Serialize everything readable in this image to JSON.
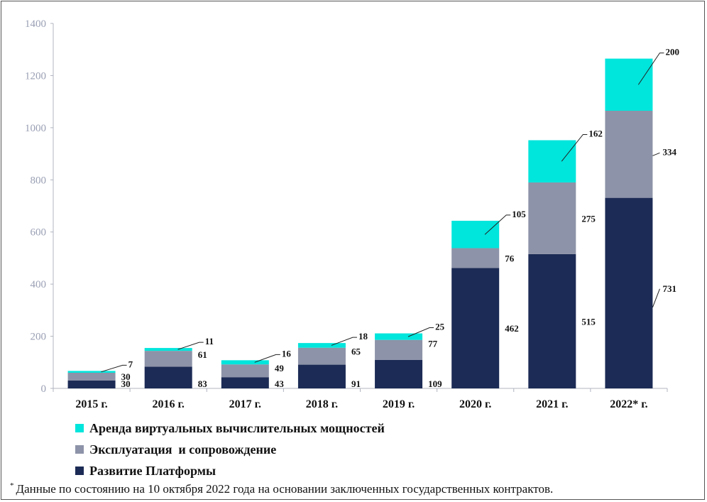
{
  "chart_data": {
    "type": "bar",
    "stacked": true,
    "categories": [
      "2015 г.",
      "2016 г.",
      "2017 г.",
      "2018 г.",
      "2019 г.",
      "2020 г.",
      "2021 г.",
      "2022* г."
    ],
    "series": [
      {
        "name": "Развитие Платформы",
        "color": "#1c2b55",
        "values": [
          30,
          83,
          43,
          91,
          109,
          462,
          515,
          731
        ]
      },
      {
        "name": "Эксплуатация  и сопровождение",
        "color": "#8d93a8",
        "values": [
          30,
          61,
          49,
          65,
          77,
          76,
          275,
          334
        ]
      },
      {
        "name": "Аренда виртуальных вычислительных мощностей",
        "color": "#00e5dc",
        "values": [
          7,
          11,
          16,
          18,
          25,
          105,
          162,
          200
        ]
      }
    ],
    "ylim": [
      0,
      1400
    ],
    "yticks": [
      0,
      200,
      400,
      600,
      800,
      1000,
      1200,
      1400
    ],
    "title": "",
    "xlabel": "",
    "ylabel": ""
  },
  "legend": {
    "items": [
      {
        "label": "Аренда виртуальных вычислительных мощностей",
        "color": "#00e5dc"
      },
      {
        "label": "Эксплуатация  и сопровождение",
        "color": "#8d93a8"
      },
      {
        "label": "Развитие Платформы",
        "color": "#1c2b55"
      }
    ]
  },
  "footnote": {
    "marker": "*",
    "text": "Данные по состоянию на 10 октября 2022 года на основании заключенных государственных контрактов."
  }
}
